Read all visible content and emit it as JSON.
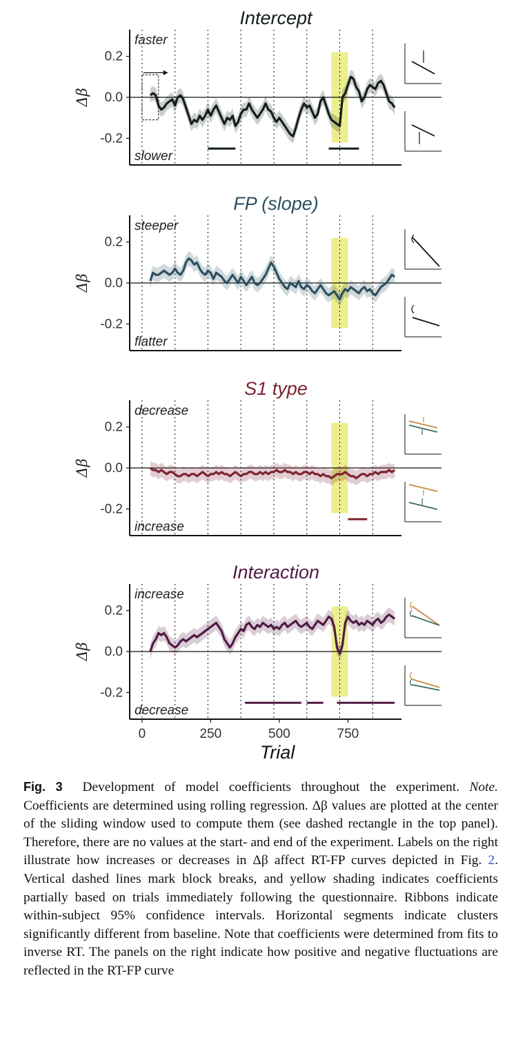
{
  "chart_data": {
    "type": "line",
    "shared_x": {
      "label": "Trial",
      "ticks": [
        0,
        250,
        500,
        750
      ],
      "xlim": [
        -45,
        945
      ],
      "block_breaks": [
        0,
        120,
        240,
        360,
        480,
        600,
        720,
        840
      ],
      "yellow_band": [
        690,
        750
      ]
    },
    "ylim": [
      -0.33,
      0.33
    ],
    "y_ticks": [
      0.2,
      0.0,
      -0.2
    ],
    "y_tick_labels": [
      "0.2",
      "0.0",
      "-0.2"
    ],
    "ylabel": "Δβ",
    "panels": [
      {
        "title": "Intercept",
        "color": "#121e1b",
        "top_label": "faster",
        "bottom_label": "slower",
        "window_box": {
          "x": [
            0,
            60
          ],
          "y": [
            -0.11,
            0.11
          ]
        },
        "window_arrow": {
          "x": [
            5,
            95
          ],
          "y": 0.12
        },
        "x": [
          30,
          40,
          50,
          60,
          70,
          80,
          90,
          100,
          110,
          120,
          130,
          140,
          150,
          160,
          170,
          180,
          190,
          200,
          210,
          220,
          230,
          240,
          250,
          260,
          270,
          280,
          290,
          300,
          310,
          320,
          330,
          340,
          350,
          360,
          370,
          380,
          390,
          400,
          410,
          420,
          430,
          440,
          450,
          460,
          470,
          480,
          490,
          500,
          510,
          520,
          530,
          540,
          550,
          560,
          570,
          580,
          590,
          600,
          610,
          620,
          630,
          640,
          650,
          660,
          670,
          680,
          690,
          700,
          710,
          720,
          730,
          740,
          750,
          760,
          770,
          780,
          790,
          800,
          810,
          820,
          830,
          840,
          850,
          860,
          870,
          880,
          890,
          900,
          910,
          920
        ],
        "values": [
          0.01,
          0.02,
          0.01,
          -0.04,
          -0.06,
          -0.05,
          -0.03,
          -0.02,
          -0.01,
          -0.04,
          0.0,
          0.01,
          -0.01,
          -0.05,
          -0.09,
          -0.13,
          -0.11,
          -0.12,
          -0.09,
          -0.11,
          -0.09,
          -0.06,
          -0.09,
          -0.06,
          -0.04,
          -0.07,
          -0.1,
          -0.13,
          -0.1,
          -0.11,
          -0.09,
          -0.14,
          -0.12,
          -0.08,
          -0.06,
          -0.06,
          -0.03,
          -0.06,
          -0.08,
          -0.1,
          -0.08,
          -0.06,
          -0.03,
          -0.06,
          -0.07,
          -0.1,
          -0.12,
          -0.1,
          -0.12,
          -0.14,
          -0.16,
          -0.18,
          -0.19,
          -0.15,
          -0.1,
          -0.06,
          -0.03,
          -0.05,
          -0.04,
          -0.07,
          -0.1,
          -0.08,
          -0.02,
          0.0,
          -0.04,
          -0.08,
          -0.11,
          -0.12,
          -0.13,
          -0.14,
          0.0,
          0.02,
          0.06,
          0.1,
          0.09,
          0.05,
          0.03,
          -0.02,
          0.0,
          0.04,
          0.06,
          0.05,
          0.04,
          0.07,
          0.08,
          0.06,
          0.02,
          -0.02,
          -0.03,
          -0.05
        ],
        "clusters": [
          [
            240,
            340
          ],
          [
            680,
            790
          ]
        ]
      },
      {
        "title": "FP (slope)",
        "color": "#2c5060",
        "top_label": "steeper",
        "bottom_label": "flatter",
        "x": [
          30,
          40,
          50,
          60,
          70,
          80,
          90,
          100,
          110,
          120,
          130,
          140,
          150,
          160,
          170,
          180,
          190,
          200,
          210,
          220,
          230,
          240,
          250,
          260,
          270,
          280,
          290,
          300,
          310,
          320,
          330,
          340,
          350,
          360,
          370,
          380,
          390,
          400,
          410,
          420,
          430,
          440,
          450,
          460,
          470,
          480,
          490,
          500,
          510,
          520,
          530,
          540,
          550,
          560,
          570,
          580,
          590,
          600,
          610,
          620,
          630,
          640,
          650,
          660,
          670,
          680,
          690,
          700,
          710,
          720,
          730,
          740,
          750,
          760,
          770,
          780,
          790,
          800,
          810,
          820,
          830,
          840,
          850,
          860,
          870,
          880,
          890,
          900,
          910,
          920
        ],
        "values": [
          0.01,
          0.05,
          0.04,
          0.04,
          0.05,
          0.06,
          0.05,
          0.04,
          0.05,
          0.07,
          0.05,
          0.04,
          0.06,
          0.1,
          0.12,
          0.11,
          0.09,
          0.1,
          0.07,
          0.05,
          0.04,
          0.06,
          0.05,
          0.02,
          0.05,
          0.04,
          0.03,
          0.01,
          0.0,
          0.02,
          0.04,
          0.02,
          0.0,
          0.03,
          0.01,
          -0.01,
          0.01,
          0.03,
          0.0,
          -0.01,
          0.0,
          0.02,
          0.04,
          0.07,
          0.1,
          0.08,
          0.05,
          0.02,
          0.0,
          -0.02,
          -0.03,
          0.0,
          -0.01,
          -0.02,
          0.01,
          -0.02,
          -0.03,
          -0.01,
          -0.02,
          -0.04,
          -0.05,
          -0.03,
          -0.01,
          -0.03,
          -0.05,
          -0.06,
          -0.05,
          -0.04,
          -0.06,
          -0.08,
          -0.05,
          -0.03,
          -0.04,
          -0.02,
          -0.03,
          -0.04,
          -0.05,
          -0.03,
          -0.02,
          -0.04,
          -0.03,
          -0.05,
          -0.06,
          -0.04,
          -0.02,
          -0.01,
          0.0,
          0.02,
          0.04,
          0.03
        ],
        "clusters": []
      },
      {
        "title": "S1 type",
        "color": "#7d2231",
        "top_label": "decrease",
        "bottom_label": "increase",
        "x": [
          30,
          40,
          50,
          60,
          70,
          80,
          90,
          100,
          110,
          120,
          130,
          140,
          150,
          160,
          170,
          180,
          190,
          200,
          210,
          220,
          230,
          240,
          250,
          260,
          270,
          280,
          290,
          300,
          310,
          320,
          330,
          340,
          350,
          360,
          370,
          380,
          390,
          400,
          410,
          420,
          430,
          440,
          450,
          460,
          470,
          480,
          490,
          500,
          510,
          520,
          530,
          540,
          550,
          560,
          570,
          580,
          590,
          600,
          610,
          620,
          630,
          640,
          650,
          660,
          670,
          680,
          690,
          700,
          710,
          720,
          730,
          740,
          750,
          760,
          770,
          780,
          790,
          800,
          810,
          820,
          830,
          840,
          850,
          860,
          870,
          880,
          890,
          900,
          910,
          920
        ],
        "values": [
          0.0,
          -0.01,
          -0.01,
          -0.02,
          -0.01,
          -0.02,
          -0.03,
          -0.02,
          -0.02,
          -0.03,
          -0.04,
          -0.04,
          -0.03,
          -0.03,
          -0.04,
          -0.03,
          -0.03,
          -0.04,
          -0.03,
          -0.02,
          -0.03,
          -0.04,
          -0.03,
          -0.03,
          -0.02,
          -0.03,
          -0.02,
          -0.03,
          -0.03,
          -0.04,
          -0.03,
          -0.02,
          -0.03,
          -0.04,
          -0.03,
          -0.03,
          -0.02,
          -0.02,
          -0.03,
          -0.03,
          -0.02,
          -0.03,
          -0.02,
          -0.03,
          -0.02,
          -0.02,
          -0.01,
          -0.02,
          -0.02,
          -0.01,
          -0.02,
          -0.02,
          -0.03,
          -0.02,
          -0.03,
          -0.03,
          -0.02,
          -0.02,
          -0.03,
          -0.02,
          -0.03,
          -0.03,
          -0.04,
          -0.03,
          -0.04,
          -0.04,
          -0.05,
          -0.04,
          -0.03,
          -0.03,
          -0.03,
          -0.02,
          -0.03,
          -0.04,
          -0.04,
          -0.05,
          -0.04,
          -0.03,
          -0.03,
          -0.04,
          -0.03,
          -0.03,
          -0.02,
          -0.03,
          -0.02,
          -0.02,
          -0.02,
          -0.01,
          -0.02,
          -0.01
        ],
        "clusters": [
          [
            750,
            820
          ]
        ]
      },
      {
        "title": "Interaction",
        "color": "#501a44",
        "top_label": "increase",
        "bottom_label": "decrease",
        "x": [
          30,
          40,
          50,
          60,
          70,
          80,
          90,
          100,
          110,
          120,
          130,
          140,
          150,
          160,
          170,
          180,
          190,
          200,
          210,
          220,
          230,
          240,
          250,
          260,
          270,
          280,
          290,
          300,
          310,
          320,
          330,
          340,
          350,
          360,
          370,
          380,
          390,
          400,
          410,
          420,
          430,
          440,
          450,
          460,
          470,
          480,
          490,
          500,
          510,
          520,
          530,
          540,
          550,
          560,
          570,
          580,
          590,
          600,
          610,
          620,
          630,
          640,
          650,
          660,
          670,
          680,
          690,
          700,
          710,
          720,
          730,
          740,
          750,
          760,
          770,
          780,
          790,
          800,
          810,
          820,
          830,
          840,
          850,
          860,
          870,
          880,
          890,
          900,
          910,
          920
        ],
        "values": [
          0.0,
          0.04,
          0.06,
          0.09,
          0.08,
          0.09,
          0.07,
          0.04,
          0.03,
          0.02,
          0.03,
          0.05,
          0.06,
          0.05,
          0.06,
          0.07,
          0.08,
          0.07,
          0.08,
          0.09,
          0.1,
          0.11,
          0.12,
          0.13,
          0.14,
          0.12,
          0.1,
          0.06,
          0.04,
          0.02,
          0.04,
          0.07,
          0.09,
          0.11,
          0.1,
          0.13,
          0.14,
          0.12,
          0.11,
          0.13,
          0.12,
          0.14,
          0.13,
          0.12,
          0.13,
          0.11,
          0.12,
          0.11,
          0.13,
          0.14,
          0.12,
          0.13,
          0.14,
          0.15,
          0.13,
          0.12,
          0.13,
          0.14,
          0.12,
          0.11,
          0.13,
          0.15,
          0.14,
          0.13,
          0.15,
          0.17,
          0.16,
          0.12,
          0.02,
          -0.01,
          0.03,
          0.14,
          0.17,
          0.15,
          0.14,
          0.15,
          0.13,
          0.14,
          0.13,
          0.15,
          0.14,
          0.13,
          0.15,
          0.16,
          0.14,
          0.15,
          0.17,
          0.18,
          0.17,
          0.16
        ],
        "clusters": [
          [
            375,
            580
          ],
          [
            600,
            660
          ],
          [
            710,
            920
          ]
        ]
      }
    ],
    "insets": [
      {
        "panel": 0,
        "top": "intercept-down",
        "bottom": "intercept-up"
      },
      {
        "panel": 1,
        "top": "slope-steeper",
        "bottom": "slope-flatter"
      },
      {
        "panel": 2,
        "top": "s1-converge",
        "bottom": "s1-diverge"
      },
      {
        "panel": 3,
        "top": "interaction-increase",
        "bottom": "interaction-decrease"
      }
    ],
    "colors": {
      "yellow": "#ecee8f",
      "ribbon_opacity": 0.22,
      "orange": "#c68a3a",
      "green": "#3c6e58"
    }
  },
  "caption": {
    "label": "Fig. 3",
    "title": "Development of model coefficients throughout the experiment.",
    "note_label": "Note.",
    "text_1": "Coefficients are determined using rolling regression. Δβ values are plotted at the center of the sliding window used to compute them (see dashed rectangle in the top panel). Therefore, there are no values at the start- and end of the experiment. Labels on the right illustrate how increases or decreases in Δβ affect RT-FP curves depicted in Fig.",
    "ref": "2",
    "text_2": ". Vertical dashed lines mark block breaks, and yellow shading indicates coefficients partially based on trials immediately following the questionnaire. Ribbons indicate within-subject 95% confidence intervals. Horizontal segments indicate clusters significantly different from baseline. Note that coefficients were determined from fits to inverse RT. The panels on the right indicate how positive and negative fluctuations are reflected in the RT-FP curve"
  }
}
